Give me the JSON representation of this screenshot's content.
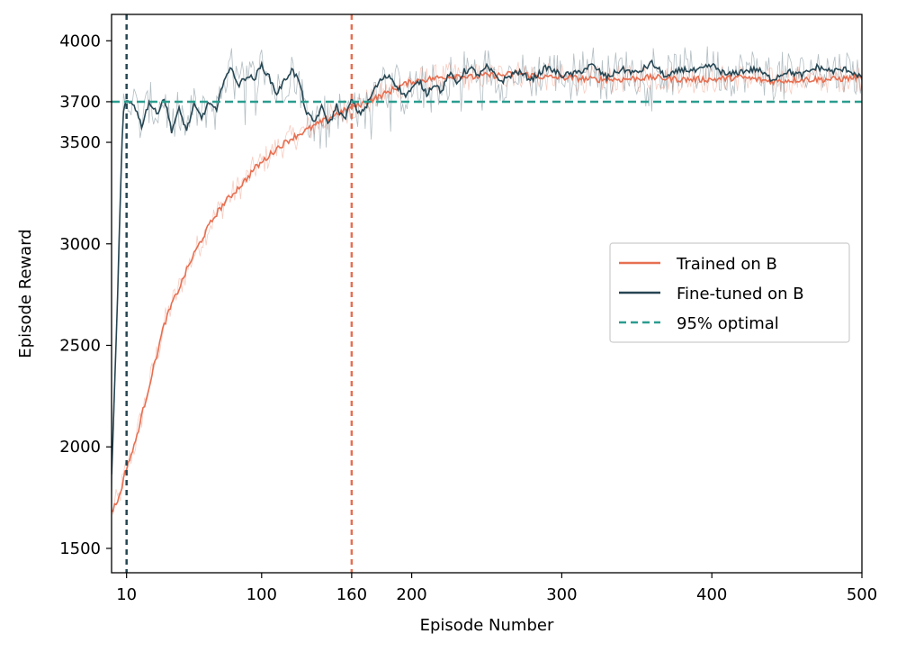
{
  "chart_data": {
    "type": "line",
    "xlabel": "Episode Number",
    "ylabel": "Episode Reward",
    "xlim": [
      0,
      500
    ],
    "ylim": [
      1380,
      4130
    ],
    "x_ticks": [
      10,
      100,
      160,
      200,
      300,
      400,
      500
    ],
    "y_ticks": [
      1500,
      2000,
      2500,
      3000,
      3500,
      3700,
      4000
    ],
    "highlight_ticks": {
      "x": [
        {
          "value": 10,
          "color": "#264653"
        },
        {
          "value": 160,
          "color": "#e76f51"
        }
      ],
      "y": [
        {
          "value": 3700,
          "color": "#2a9d8f"
        }
      ]
    },
    "reference_lines": [
      {
        "orientation": "horizontal",
        "value": 3700,
        "label": "95% optimal",
        "color": "#2a9d8f",
        "style": "dashed"
      },
      {
        "orientation": "vertical",
        "value": 10,
        "color": "#264653",
        "style": "dashed"
      },
      {
        "orientation": "vertical",
        "value": 160,
        "color": "#e76f51",
        "style": "dashed"
      }
    ],
    "series": [
      {
        "name": "Trained on B",
        "color": "#e76f51",
        "x": [
          0,
          5,
          10,
          15,
          20,
          25,
          30,
          35,
          40,
          45,
          50,
          55,
          60,
          65,
          70,
          75,
          80,
          85,
          90,
          95,
          100,
          110,
          120,
          130,
          140,
          150,
          160,
          170,
          180,
          190,
          200,
          210,
          220,
          230,
          240,
          250,
          260,
          270,
          280,
          290,
          300,
          320,
          340,
          360,
          380,
          400,
          420,
          440,
          460,
          480,
          500
        ],
        "values": [
          1680,
          1750,
          1900,
          2000,
          2150,
          2300,
          2450,
          2600,
          2700,
          2780,
          2870,
          2950,
          3020,
          3090,
          3150,
          3200,
          3240,
          3280,
          3320,
          3370,
          3400,
          3470,
          3520,
          3560,
          3600,
          3640,
          3670,
          3700,
          3730,
          3770,
          3800,
          3810,
          3820,
          3830,
          3820,
          3830,
          3830,
          3840,
          3830,
          3820,
          3820,
          3810,
          3810,
          3820,
          3810,
          3810,
          3820,
          3800,
          3810,
          3810,
          3820
        ]
      },
      {
        "name": "Fine-tuned on B",
        "color": "#264653",
        "x": [
          0,
          3,
          5,
          7,
          8,
          10,
          15,
          20,
          25,
          30,
          35,
          40,
          45,
          50,
          55,
          60,
          65,
          70,
          75,
          80,
          85,
          90,
          95,
          100,
          105,
          110,
          115,
          120,
          125,
          130,
          135,
          140,
          145,
          150,
          155,
          160,
          165,
          170,
          175,
          180,
          185,
          190,
          195,
          200,
          205,
          210,
          215,
          220,
          225,
          230,
          235,
          240,
          245,
          250,
          260,
          270,
          280,
          290,
          300,
          310,
          320,
          330,
          340,
          350,
          360,
          370,
          380,
          390,
          400,
          410,
          420,
          430,
          440,
          450,
          460,
          470,
          480,
          490,
          500
        ],
        "values": [
          1850,
          2500,
          3000,
          3500,
          3650,
          3700,
          3690,
          3580,
          3700,
          3640,
          3720,
          3560,
          3660,
          3560,
          3680,
          3620,
          3700,
          3650,
          3820,
          3860,
          3780,
          3830,
          3810,
          3880,
          3820,
          3740,
          3800,
          3860,
          3800,
          3640,
          3600,
          3670,
          3590,
          3680,
          3610,
          3710,
          3640,
          3680,
          3760,
          3810,
          3830,
          3780,
          3730,
          3760,
          3800,
          3740,
          3790,
          3750,
          3840,
          3790,
          3850,
          3860,
          3830,
          3870,
          3800,
          3850,
          3810,
          3870,
          3830,
          3840,
          3880,
          3820,
          3860,
          3840,
          3890,
          3820,
          3860,
          3850,
          3880,
          3830,
          3850,
          3860,
          3810,
          3850,
          3830,
          3870,
          3850,
          3860,
          3820
        ]
      }
    ],
    "legend": {
      "position": "right",
      "entries": [
        {
          "label": "Trained on B",
          "color": "#e76f51",
          "style": "solid"
        },
        {
          "label": "Fine-tuned on B",
          "color": "#264653",
          "style": "solid"
        },
        {
          "label": "95% optimal",
          "color": "#2a9d8f",
          "style": "dashed"
        }
      ]
    }
  }
}
